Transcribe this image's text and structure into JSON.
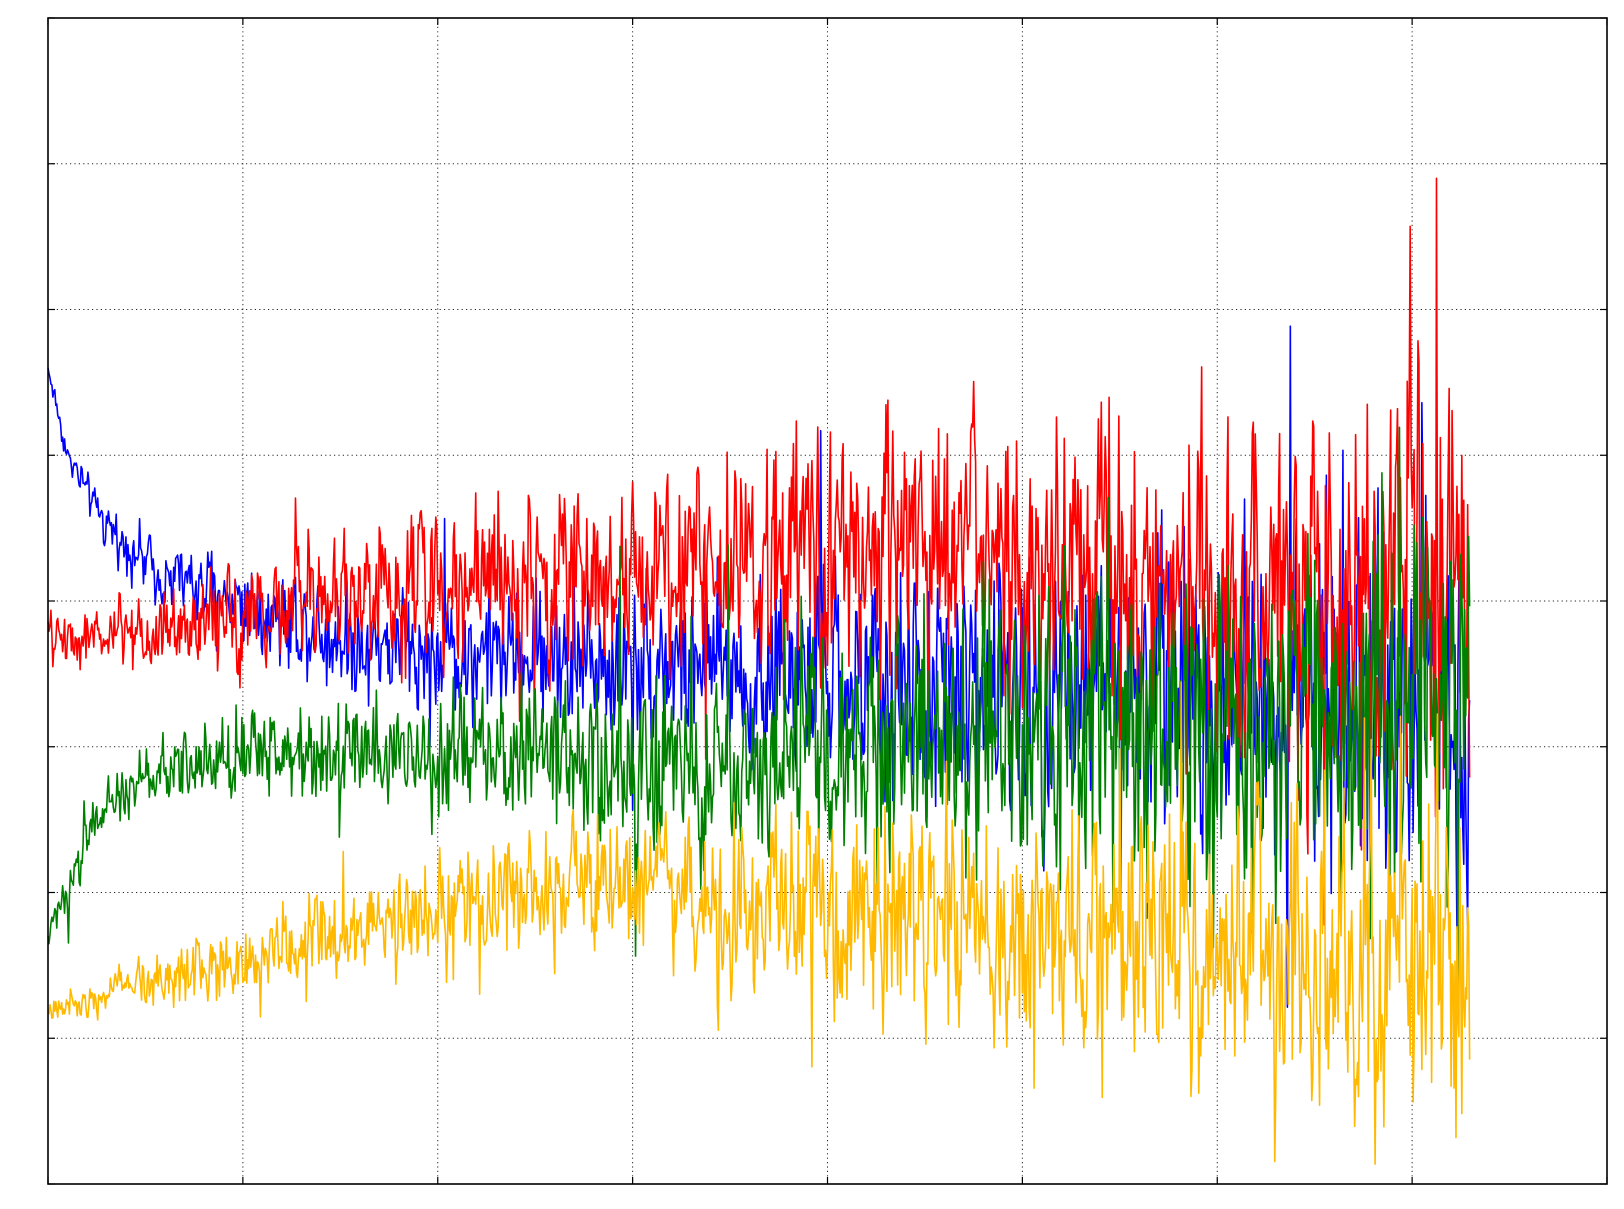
{
  "chart_data": {
    "type": "line",
    "title": "",
    "xlabel": "",
    "ylabel": "",
    "xlim": [
      0,
      1600
    ],
    "ylim": [
      -8,
      8
    ],
    "grid": true,
    "x_ticks": [
      0,
      200,
      400,
      600,
      800,
      1000,
      1200,
      1400,
      1600
    ],
    "y_ticks": [
      -8,
      -6,
      -4,
      -2,
      0,
      2,
      4,
      6,
      8
    ],
    "x_tick_labels": [],
    "y_tick_labels": [],
    "n_points": 1460,
    "series": [
      {
        "color": "#0000ff",
        "profile": [
          [
            0,
            3.2
          ],
          [
            20,
            2.0
          ],
          [
            60,
            1.0
          ],
          [
            120,
            0.35
          ],
          [
            200,
            0.0
          ],
          [
            300,
            -0.5
          ],
          [
            400,
            -0.7
          ],
          [
            600,
            -0.8
          ],
          [
            800,
            -1.1
          ],
          [
            1000,
            -1.2
          ],
          [
            1200,
            -1.2
          ],
          [
            1400,
            -1.2
          ],
          [
            1460,
            -1.3
          ]
        ],
        "noise_amp": [
          [
            0,
            0.1
          ],
          [
            200,
            0.4
          ],
          [
            500,
            0.6
          ],
          [
            800,
            0.9
          ],
          [
            1000,
            1.1
          ],
          [
            1200,
            1.3
          ],
          [
            1460,
            1.6
          ]
        ],
        "extreme_points": [
          {
            "x": 0,
            "y": 3.2
          },
          {
            "x": 1460,
            "y": -4.4
          }
        ]
      },
      {
        "color": "#ff0000",
        "profile": [
          [
            0,
            -0.5
          ],
          [
            100,
            -0.5
          ],
          [
            300,
            0.1
          ],
          [
            500,
            0.4
          ],
          [
            700,
            0.5
          ],
          [
            800,
            0.6
          ],
          [
            900,
            0.9
          ],
          [
            1000,
            0.3
          ],
          [
            1100,
            0.2
          ],
          [
            1200,
            0.0
          ],
          [
            1300,
            0.0
          ],
          [
            1400,
            0.3
          ],
          [
            1460,
            0.3
          ]
        ],
        "noise_amp": [
          [
            0,
            0.2
          ],
          [
            200,
            0.45
          ],
          [
            500,
            0.7
          ],
          [
            800,
            1.0
          ],
          [
            1000,
            1.3
          ],
          [
            1200,
            1.5
          ],
          [
            1460,
            1.9
          ]
        ],
        "extreme_points": [
          {
            "x": 1425,
            "y": 5.8
          },
          {
            "x": 1354,
            "y": 2.7
          }
        ]
      },
      {
        "color": "#008000",
        "profile": [
          [
            0,
            -4.6
          ],
          [
            50,
            -3.0
          ],
          [
            100,
            -2.4
          ],
          [
            200,
            -2.1
          ],
          [
            300,
            -2.0
          ],
          [
            500,
            -2.1
          ],
          [
            700,
            -2.4
          ],
          [
            800,
            -2.0
          ],
          [
            1000,
            -1.9
          ],
          [
            1200,
            -1.8
          ],
          [
            1400,
            -1.6
          ],
          [
            1460,
            -1.4
          ]
        ],
        "noise_amp": [
          [
            0,
            0.15
          ],
          [
            200,
            0.35
          ],
          [
            500,
            0.6
          ],
          [
            800,
            0.9
          ],
          [
            1000,
            1.2
          ],
          [
            1200,
            1.4
          ],
          [
            1460,
            1.7
          ]
        ],
        "extreme_points": [
          {
            "x": 0,
            "y": -4.6
          },
          {
            "x": 1460,
            "y": -1.4
          }
        ]
      },
      {
        "color": "#ffb900",
        "profile": [
          [
            0,
            -5.6
          ],
          [
            100,
            -5.2
          ],
          [
            200,
            -4.9
          ],
          [
            300,
            -4.6
          ],
          [
            400,
            -4.2
          ],
          [
            600,
            -4.0
          ],
          [
            800,
            -4.3
          ],
          [
            1000,
            -4.6
          ],
          [
            1200,
            -4.8
          ],
          [
            1400,
            -5.0
          ],
          [
            1460,
            -5.2
          ]
        ],
        "noise_amp": [
          [
            0,
            0.1
          ],
          [
            200,
            0.35
          ],
          [
            500,
            0.55
          ],
          [
            800,
            0.8
          ],
          [
            1000,
            1.0
          ],
          [
            1200,
            1.2
          ],
          [
            1460,
            1.5
          ]
        ],
        "extreme_points": [
          {
            "x": 1345,
            "y": -6.8
          },
          {
            "x": 1460,
            "y": -5.3
          }
        ]
      }
    ]
  }
}
